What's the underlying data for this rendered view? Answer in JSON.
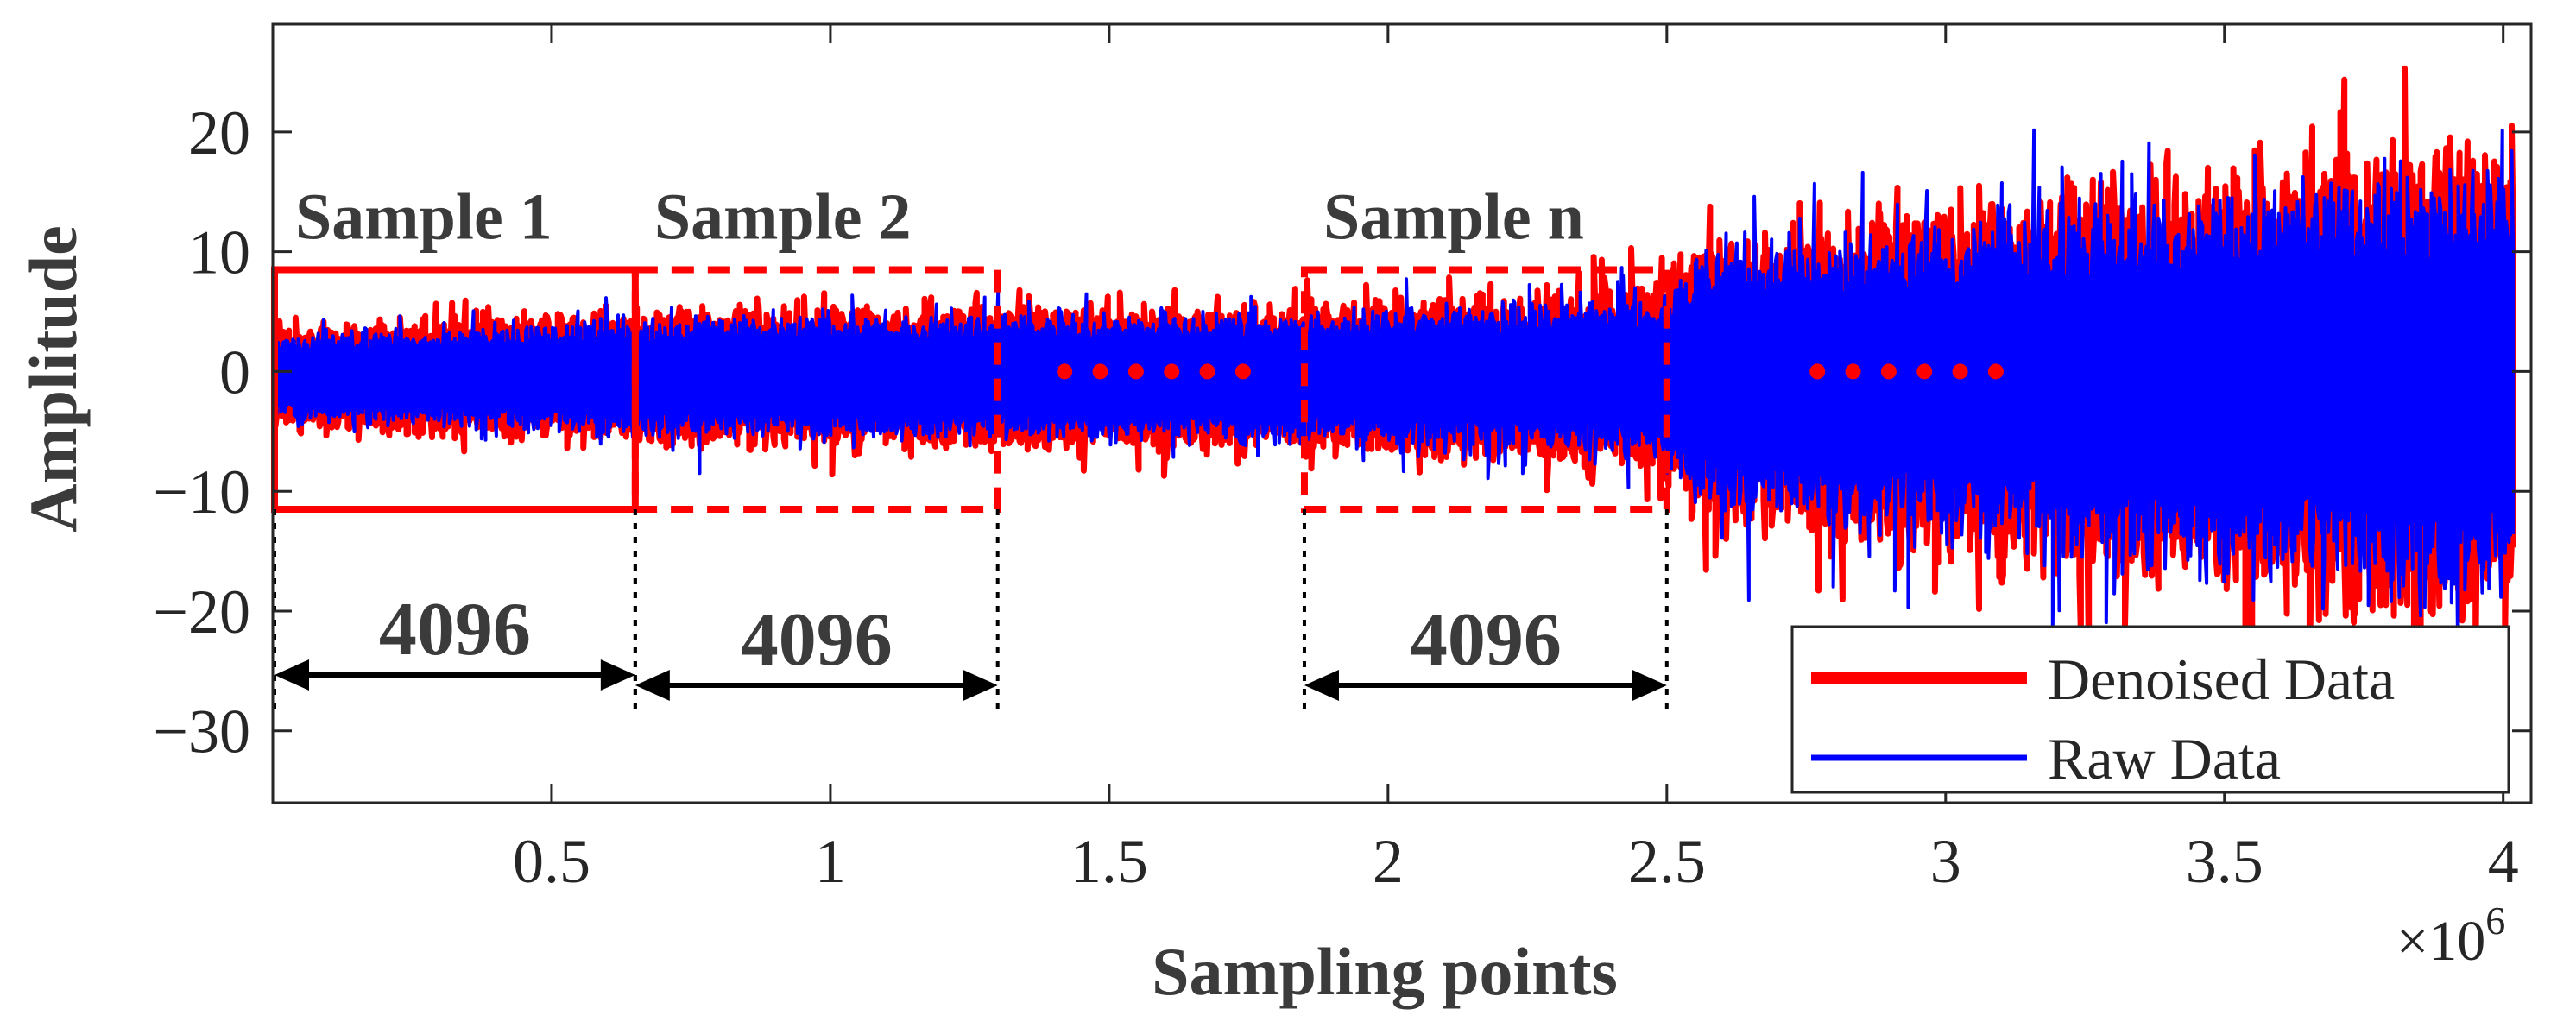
{
  "chart_data": {
    "type": "line",
    "title": "",
    "xlabel": "Sampling points",
    "ylabel": "Amplitude",
    "x_exponent_label": "×10",
    "x_exponent_power": "6",
    "xlim": [
      0,
      4.05
    ],
    "ylim": [
      -36,
      29
    ],
    "x_ticks": [
      0.5,
      1,
      1.5,
      2,
      2.5,
      3,
      3.5,
      4
    ],
    "x_tick_labels": [
      "0.5",
      "1",
      "1.5",
      "2",
      "2.5",
      "3",
      "3.5",
      "4"
    ],
    "y_ticks": [
      20,
      10,
      0,
      -10,
      -20,
      -30
    ],
    "y_tick_labels": [
      "20",
      "10",
      "0",
      "−10",
      "−20",
      "−30"
    ],
    "legend_position": "bottom-right",
    "series": [
      {
        "name": "Denoised Data",
        "color": "#ff0000",
        "envelope": [
          {
            "x": 0.0,
            "amp": 3.5
          },
          {
            "x": 0.65,
            "amp": 5.0
          },
          {
            "x": 1.3,
            "amp": 5.5
          },
          {
            "x": 1.85,
            "amp": 5.5
          },
          {
            "x": 2.5,
            "amp": 7.0
          },
          {
            "x": 2.55,
            "amp": 11.0
          },
          {
            "x": 3.0,
            "amp": 14.0
          },
          {
            "x": 3.5,
            "amp": 17.0
          },
          {
            "x": 4.0,
            "amp": 20.0
          }
        ]
      },
      {
        "name": "Raw Data",
        "color": "#0000ff",
        "envelope": [
          {
            "x": 0.0,
            "amp": 3.0
          },
          {
            "x": 0.65,
            "amp": 4.5
          },
          {
            "x": 1.3,
            "amp": 5.0
          },
          {
            "x": 1.85,
            "amp": 5.0
          },
          {
            "x": 2.5,
            "amp": 6.5
          },
          {
            "x": 2.55,
            "amp": 10.5
          },
          {
            "x": 3.0,
            "amp": 13.0
          },
          {
            "x": 3.5,
            "amp": 16.0
          },
          {
            "x": 4.0,
            "amp": 18.0
          }
        ]
      }
    ],
    "annotations": {
      "samples": [
        {
          "label": "Sample 1",
          "x_start": 0.0,
          "x_end": 0.65,
          "y_top": 8.5,
          "y_bottom": -11.5,
          "style": "solid",
          "span_label": "4096"
        },
        {
          "label": "Sample 2",
          "x_start": 0.65,
          "x_end": 1.3,
          "y_top": 8.5,
          "y_bottom": -11.5,
          "style": "dashed",
          "span_label": "4096"
        },
        {
          "label": "Sample n",
          "x_start": 1.85,
          "x_end": 2.5,
          "y_top": 8.5,
          "y_bottom": -11.5,
          "style": "dashed",
          "span_label": "4096"
        }
      ],
      "ellipses": [
        {
          "x_start": 1.42,
          "x_end": 1.74,
          "count": 6
        },
        {
          "x_start": 2.77,
          "x_end": 3.09,
          "count": 6
        }
      ],
      "color": "#ff0000"
    }
  }
}
